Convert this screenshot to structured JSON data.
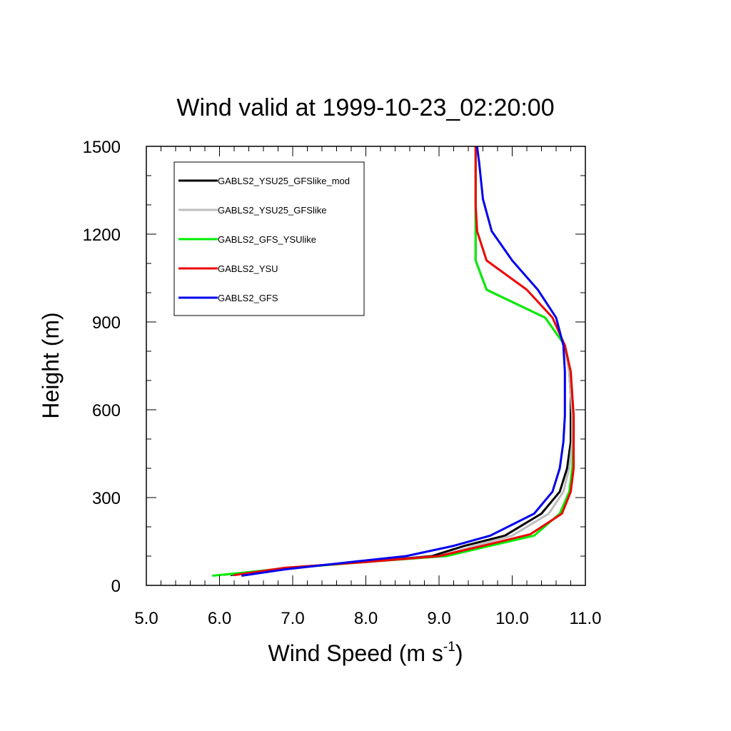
{
  "chart_data": {
    "type": "line",
    "title": "Wind valid at 1999-10-23_02:20:00",
    "xlabel": "Wind Speed (m s",
    "xlabel_sup": "-1",
    "xlabel_end": ")",
    "ylabel": "Height (m)",
    "xlim": [
      5.0,
      11.0
    ],
    "ylim": [
      0,
      1500
    ],
    "x_ticks": [
      "5.0",
      "6.0",
      "7.0",
      "8.0",
      "9.0",
      "10.0",
      "11.0"
    ],
    "y_ticks": [
      "0",
      "300",
      "600",
      "900",
      "1200",
      "1500"
    ],
    "grid": false,
    "legend_position": "top-left",
    "series": [
      {
        "name": "GABLS2_YSU25_GFSlike_mod",
        "color": "#000000",
        "points": [
          [
            6.15,
            35
          ],
          [
            6.9,
            60
          ],
          [
            8.0,
            80
          ],
          [
            8.9,
            100
          ],
          [
            9.35,
            135
          ],
          [
            9.9,
            170
          ],
          [
            10.4,
            245
          ],
          [
            10.65,
            320
          ],
          [
            10.75,
            400
          ],
          [
            10.8,
            490
          ],
          [
            10.8,
            580
          ],
          [
            10.8,
            650
          ],
          [
            10.78,
            730
          ],
          [
            10.72,
            820
          ],
          [
            10.45,
            915
          ],
          [
            9.65,
            1010
          ],
          [
            9.5,
            1110
          ],
          [
            9.5,
            1200
          ],
          [
            9.5,
            1300
          ],
          [
            9.5,
            1400
          ],
          [
            9.5,
            1500
          ]
        ]
      },
      {
        "name": "GABLS2_YSU25_GFSlike",
        "color": "#bdbdbd",
        "points": [
          [
            6.05,
            35
          ],
          [
            6.9,
            60
          ],
          [
            8.0,
            80
          ],
          [
            9.0,
            100
          ],
          [
            9.5,
            135
          ],
          [
            10.0,
            170
          ],
          [
            10.5,
            245
          ],
          [
            10.7,
            320
          ],
          [
            10.78,
            400
          ],
          [
            10.82,
            490
          ],
          [
            10.82,
            580
          ],
          [
            10.8,
            650
          ],
          [
            10.78,
            730
          ],
          [
            10.72,
            820
          ],
          [
            10.45,
            915
          ],
          [
            9.65,
            1010
          ],
          [
            9.5,
            1110
          ],
          [
            9.5,
            1200
          ],
          [
            9.5,
            1300
          ],
          [
            9.5,
            1400
          ],
          [
            9.5,
            1500
          ]
        ]
      },
      {
        "name": "GABLS2_GFS_YSUlike",
        "color": "#00ee00",
        "points": [
          [
            5.9,
            33
          ],
          [
            6.9,
            58
          ],
          [
            8.0,
            80
          ],
          [
            9.1,
            100
          ],
          [
            9.7,
            135
          ],
          [
            10.3,
            170
          ],
          [
            10.65,
            245
          ],
          [
            10.78,
            320
          ],
          [
            10.82,
            400
          ],
          [
            10.84,
            490
          ],
          [
            10.84,
            580
          ],
          [
            10.82,
            650
          ],
          [
            10.8,
            730
          ],
          [
            10.72,
            820
          ],
          [
            10.45,
            915
          ],
          [
            9.65,
            1010
          ],
          [
            9.5,
            1110
          ],
          [
            9.5,
            1200
          ],
          [
            9.5,
            1300
          ],
          [
            9.5,
            1400
          ],
          [
            9.5,
            1500
          ]
        ]
      },
      {
        "name": "GABLS2_YSU",
        "color": "#ee0000",
        "points": [
          [
            6.2,
            35
          ],
          [
            6.9,
            60
          ],
          [
            8.0,
            80
          ],
          [
            9.0,
            100
          ],
          [
            9.6,
            135
          ],
          [
            10.25,
            175
          ],
          [
            10.68,
            245
          ],
          [
            10.8,
            320
          ],
          [
            10.84,
            400
          ],
          [
            10.84,
            490
          ],
          [
            10.84,
            580
          ],
          [
            10.82,
            650
          ],
          [
            10.8,
            730
          ],
          [
            10.72,
            820
          ],
          [
            10.55,
            915
          ],
          [
            10.2,
            1010
          ],
          [
            9.65,
            1110
          ],
          [
            9.52,
            1210
          ],
          [
            9.5,
            1300
          ],
          [
            9.5,
            1400
          ],
          [
            9.5,
            1500
          ]
        ]
      },
      {
        "name": "GABLS2_GFS",
        "color": "#0000ee",
        "points": [
          [
            6.3,
            33
          ],
          [
            6.9,
            55
          ],
          [
            7.8,
            80
          ],
          [
            8.55,
            100
          ],
          [
            9.2,
            135
          ],
          [
            9.7,
            170
          ],
          [
            10.3,
            245
          ],
          [
            10.55,
            320
          ],
          [
            10.65,
            400
          ],
          [
            10.7,
            490
          ],
          [
            10.72,
            580
          ],
          [
            10.72,
            650
          ],
          [
            10.72,
            730
          ],
          [
            10.7,
            820
          ],
          [
            10.6,
            915
          ],
          [
            10.35,
            1010
          ],
          [
            10.0,
            1110
          ],
          [
            9.72,
            1210
          ],
          [
            9.6,
            1320
          ],
          [
            9.55,
            1440
          ],
          [
            9.52,
            1500
          ]
        ]
      }
    ]
  }
}
